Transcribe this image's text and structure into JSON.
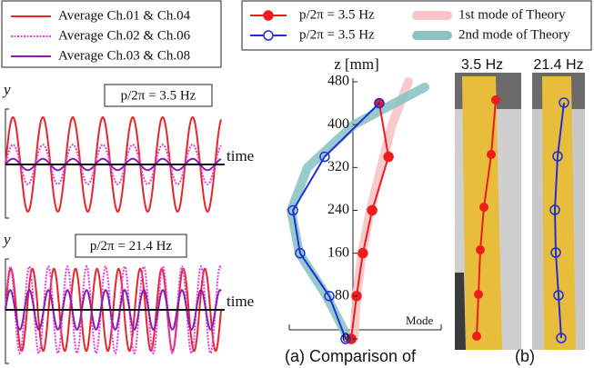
{
  "chart_data": [
    {
      "type": "line",
      "annotation": "p/2π = 3.5 Hz",
      "y_label": "y",
      "x_label": "time",
      "series": [
        {
          "name": "Average Ch.01 & Ch.04",
          "color": "#e8262a",
          "amplitude": 1,
          "cycles": 7.2,
          "dashed": false
        },
        {
          "name": "Average Ch.02 & Ch.06",
          "color": "#e040e0",
          "amplitude": 0.42,
          "cycles": 7.2,
          "dashed": true
        },
        {
          "name": "Average Ch.03 & Ch.08",
          "color": "#8a1fb0",
          "amplitude": 0.12,
          "cycles": 7.2,
          "dashed": false
        }
      ]
    },
    {
      "type": "line",
      "annotation": "p/2π = 21.4 Hz",
      "y_label": "y",
      "x_label": "time",
      "series": [
        {
          "color": "#e8262a",
          "amplitude": 0.87,
          "cycles": 10,
          "dashed": false
        },
        {
          "color": "#e040e0",
          "amplitude": 0.92,
          "cycles": 11.3,
          "dashed": true
        },
        {
          "color": "#8a1fb0",
          "amplitude": 0.42,
          "cycles": 11.3,
          "dashed": false
        }
      ]
    },
    {
      "type": "mode",
      "y_label": "z [mm]",
      "x_label": "Mode",
      "xlim": [
        -3,
        3.5
      ],
      "ylim": [
        0,
        480
      ],
      "yticks": [
        0,
        80,
        160,
        240,
        320,
        400,
        480
      ],
      "series": [
        {
          "name": "1st mode of Theory",
          "color": "#f7c4c8",
          "marker": "none",
          "x": [
            0.1,
            0.2,
            0.4,
            0.7,
            1.1,
            1.5,
            2.1
          ],
          "values": [
            0,
            80,
            160,
            240,
            320,
            400,
            480
          ]
        },
        {
          "name": "2nd mode of Theory",
          "color": "#8cc4c4",
          "marker": "none",
          "x": [
            -0.1,
            -0.9,
            -1.9,
            -2.2,
            -1.6,
            0.1,
            2.7
          ],
          "values": [
            0,
            80,
            160,
            240,
            320,
            400,
            470
          ]
        },
        {
          "name": "p/2π = 3.5 Hz",
          "color": "#ee1c1c",
          "marker": "filled",
          "x": [
            0,
            0.2,
            0.43,
            0.77,
            1.37,
            1.03
          ],
          "values": [
            0,
            80,
            160,
            240,
            340,
            440
          ]
        },
        {
          "name": "p/2π = 3.5 Hz",
          "color": "#1c2fd8",
          "marker": "open",
          "x": [
            -0.2,
            -0.8,
            -1.87,
            -2.13,
            -0.97,
            1.03
          ],
          "values": [
            0,
            80,
            160,
            240,
            340,
            440
          ]
        }
      ]
    }
  ],
  "photos": {
    "labels": [
      "3.5 Hz",
      "21.4 Hz"
    ]
  },
  "captions": [
    "(a) Comparison of",
    "(b)"
  ]
}
